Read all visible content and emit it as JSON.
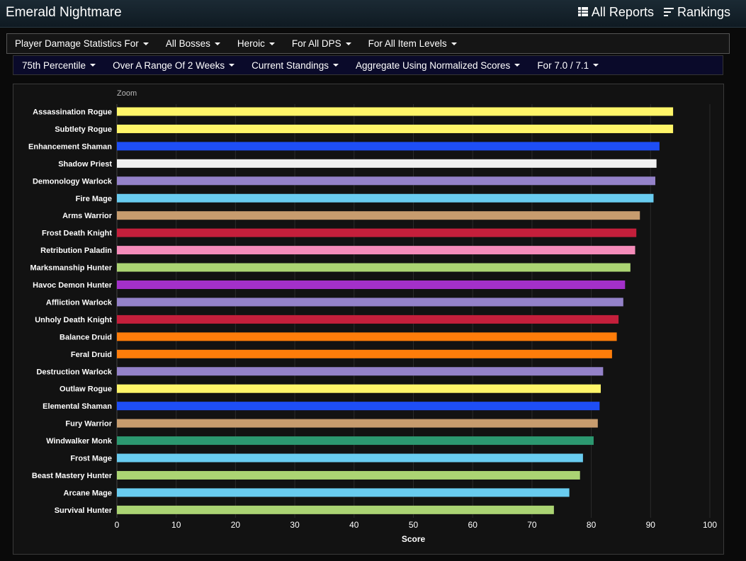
{
  "header": {
    "title": "Emerald Nightmare",
    "all_reports_label": "All Reports",
    "rankings_label": "Rankings"
  },
  "filters_row1": [
    {
      "label": "Player Damage Statistics For"
    },
    {
      "label": "All Bosses"
    },
    {
      "label": "Heroic"
    },
    {
      "label": "For All DPS"
    },
    {
      "label": "For All Item Levels"
    }
  ],
  "filters_row2": [
    {
      "label": "75th Percentile"
    },
    {
      "label": "Over A Range Of 2 Weeks"
    },
    {
      "label": "Current Standings"
    },
    {
      "label": "Aggregate Using Normalized Scores"
    },
    {
      "label": "For 7.0 / 7.1"
    }
  ],
  "chart": {
    "zoom_label": "Zoom"
  },
  "chart_data": {
    "type": "bar",
    "orientation": "horizontal",
    "xlabel": "Score",
    "xlim": [
      0,
      100
    ],
    "xticks": [
      0,
      10,
      20,
      30,
      40,
      50,
      60,
      70,
      80,
      90,
      100
    ],
    "grid": true,
    "categories": [
      "Assassination Rogue",
      "Subtlety Rogue",
      "Enhancement Shaman",
      "Shadow Priest",
      "Demonology Warlock",
      "Fire Mage",
      "Arms Warrior",
      "Frost Death Knight",
      "Retribution Paladin",
      "Marksmanship Hunter",
      "Havoc Demon Hunter",
      "Affliction Warlock",
      "Unholy Death Knight",
      "Balance Druid",
      "Feral Druid",
      "Destruction Warlock",
      "Outlaw Rogue",
      "Elemental Shaman",
      "Fury Warrior",
      "Windwalker Monk",
      "Frost Mage",
      "Beast Mastery Hunter",
      "Arcane Mage",
      "Survival Hunter"
    ],
    "values": [
      93.8,
      93.8,
      91.5,
      91.0,
      90.8,
      90.5,
      88.2,
      87.6,
      87.4,
      86.6,
      85.7,
      85.4,
      84.6,
      84.3,
      83.5,
      82.0,
      81.6,
      81.4,
      81.1,
      80.4,
      78.6,
      78.1,
      76.3,
      73.7
    ],
    "colors": [
      "#fff569",
      "#fff569",
      "#1e4ef5",
      "#f0f0f0",
      "#9482c9",
      "#69ccf0",
      "#c79c6e",
      "#c41f3b",
      "#f58cba",
      "#abd473",
      "#a330c9",
      "#9482c9",
      "#c41f3b",
      "#ff7d0a",
      "#ff7d0a",
      "#9482c9",
      "#fff569",
      "#1e4ef5",
      "#c79c6e",
      "#2c9870",
      "#69ccf0",
      "#abd473",
      "#69ccf0",
      "#abd473"
    ]
  }
}
